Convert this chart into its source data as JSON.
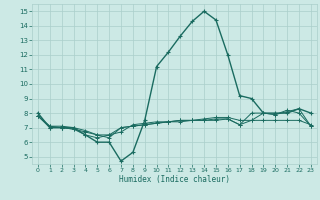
{
  "xlabel": "Humidex (Indice chaleur)",
  "xlim": [
    -0.5,
    23.5
  ],
  "ylim": [
    4.5,
    15.5
  ],
  "xticks": [
    0,
    1,
    2,
    3,
    4,
    5,
    6,
    7,
    8,
    9,
    10,
    11,
    12,
    13,
    14,
    15,
    16,
    17,
    18,
    19,
    20,
    21,
    22,
    23
  ],
  "yticks": [
    5,
    6,
    7,
    8,
    9,
    10,
    11,
    12,
    13,
    14,
    15
  ],
  "bg_color": "#cce9e5",
  "grid_color": "#aacfcb",
  "line_color": "#1a6b60",
  "line1": [
    8.0,
    7.0,
    7.0,
    7.0,
    6.5,
    6.0,
    6.0,
    4.7,
    5.3,
    7.5,
    11.2,
    12.2,
    13.3,
    14.3,
    15.0,
    14.4,
    12.0,
    9.2,
    9.0,
    8.0,
    8.0,
    8.0,
    8.3,
    8.0
  ],
  "line2": [
    7.8,
    7.0,
    7.0,
    6.9,
    6.5,
    6.3,
    6.5,
    6.7,
    7.2,
    7.3,
    7.4,
    7.4,
    7.5,
    7.5,
    7.6,
    7.7,
    7.7,
    7.5,
    7.5,
    8.0,
    7.9,
    8.1,
    8.3,
    7.1
  ],
  "line3": [
    7.8,
    7.1,
    7.0,
    6.9,
    6.7,
    6.5,
    6.3,
    7.0,
    7.1,
    7.2,
    7.3,
    7.4,
    7.5,
    7.5,
    7.5,
    7.6,
    7.6,
    7.2,
    8.0,
    8.0,
    7.9,
    8.2,
    8.0,
    7.1
  ],
  "line4": [
    7.8,
    7.1,
    7.1,
    7.0,
    6.8,
    6.5,
    6.5,
    7.0,
    7.1,
    7.2,
    7.3,
    7.4,
    7.4,
    7.5,
    7.5,
    7.5,
    7.6,
    7.2,
    7.5,
    7.5,
    7.5,
    7.5,
    7.5,
    7.2
  ]
}
